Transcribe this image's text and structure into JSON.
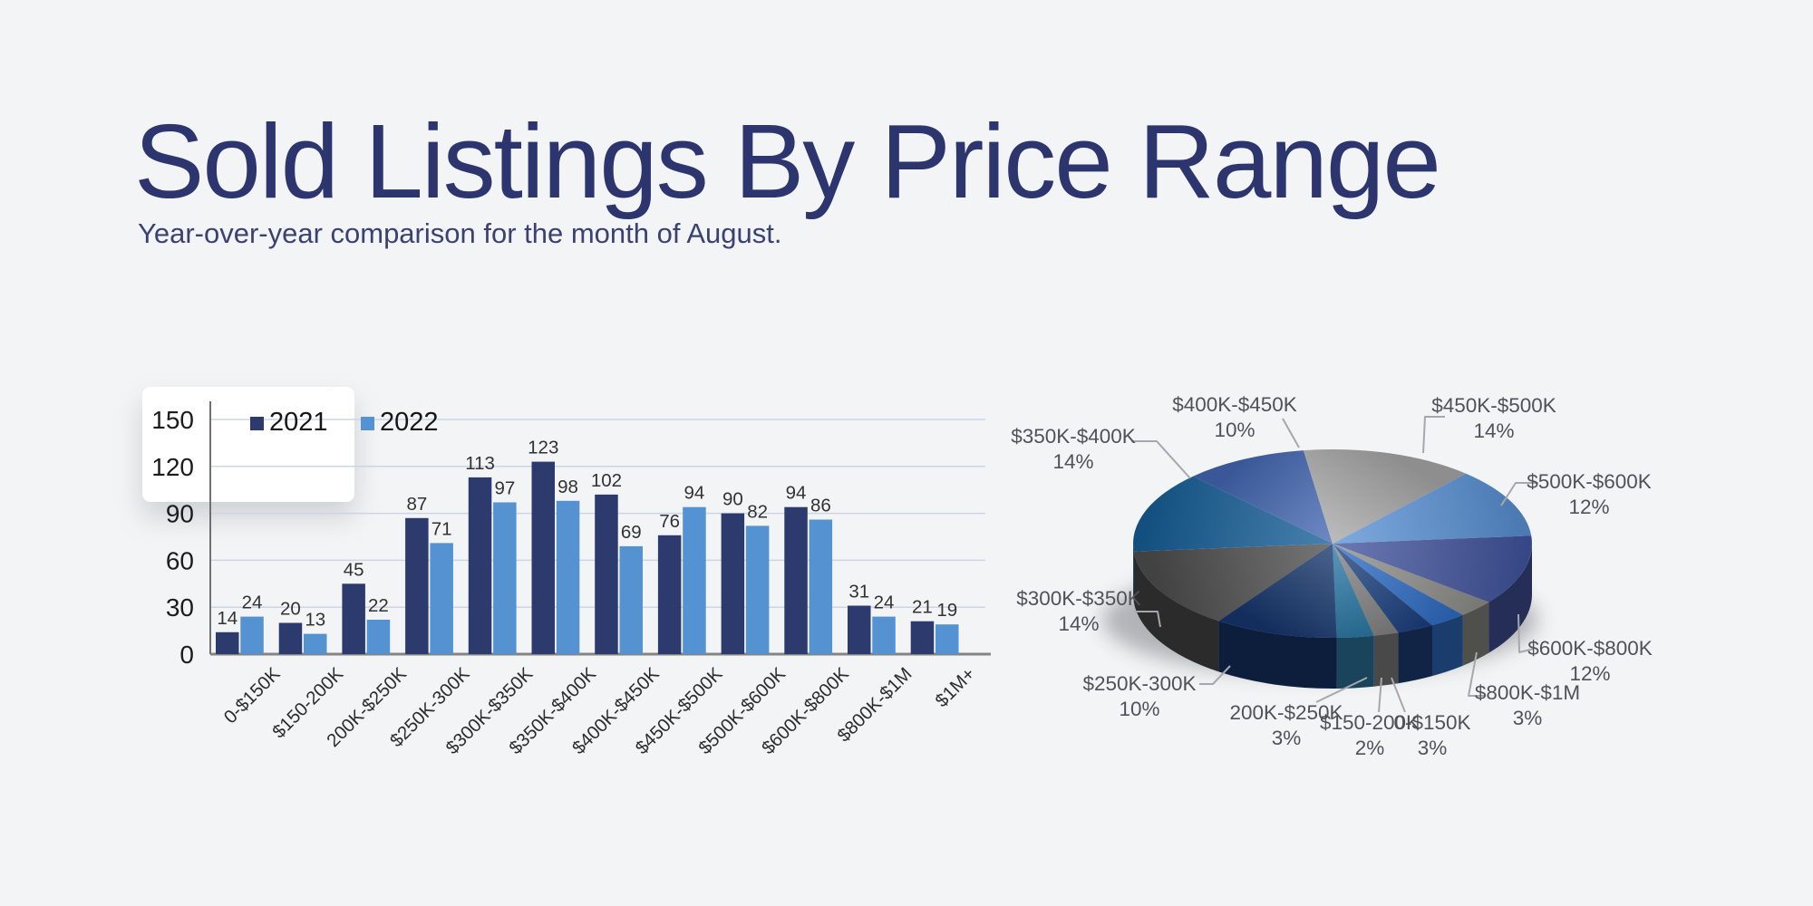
{
  "background": "#f3f4f5",
  "header": {
    "title": "Sold Listings By Price Range",
    "subtitle": "Year-over-year comparison for the month of August."
  },
  "chart_data": [
    {
      "type": "bar",
      "title": "",
      "categories": [
        "0-$150K",
        "$150-200K",
        "200K-$250K",
        "$250K-300K",
        "$300K-$350K",
        "$350K-$400K",
        "$400K-$450K",
        "$450K-$500K",
        "$500K-$600K",
        "$600K-$800K",
        "$800K-$1M",
        "$1M+"
      ],
      "series": [
        {
          "name": "2021",
          "color": "#2c3a6d",
          "values": [
            14,
            20,
            45,
            87,
            113,
            123,
            102,
            76,
            90,
            94,
            31,
            21
          ]
        },
        {
          "name": "2022",
          "color": "#5592d2",
          "values": [
            24,
            13,
            22,
            71,
            97,
            98,
            69,
            94,
            82,
            86,
            24,
            19
          ]
        }
      ],
      "ylim": [
        0,
        150
      ],
      "yticks": [
        0,
        30,
        60,
        90,
        120,
        150
      ],
      "grid": true,
      "grid_color": "#ccd5e6",
      "axis_color": "#6f6f6f",
      "tick_label_color": "#1c1c1c",
      "value_label_color": "#323232",
      "value_labels": true,
      "legend_position": "top-left"
    },
    {
      "type": "pie",
      "effect": "3d",
      "start_angle_deg": 150,
      "label_color": "#515156",
      "leader_color": "#a7a7ab",
      "slices": [
        {
          "label": "0-$150K",
          "pct": 3,
          "pct_label": "3%",
          "color": "#1e4280",
          "show_label": true
        },
        {
          "label": "$150-200K",
          "pct": 2,
          "pct_label": "2%",
          "color": "#858585",
          "show_label": true
        },
        {
          "label": "200K-$250K",
          "pct": 3,
          "pct_label": "3%",
          "color": "#2d7ba8",
          "show_label": true
        },
        {
          "label": "$250K-300K",
          "pct": 10,
          "pct_label": "10%",
          "color": "#17376e",
          "show_label": true
        },
        {
          "label": "$300K-$350K",
          "pct": 14,
          "pct_label": "14%",
          "color": "#4f4f4f",
          "show_label": true
        },
        {
          "label": "$350K-$400K",
          "pct": 14,
          "pct_label": "14%",
          "color": "#155e97",
          "show_label": true
        },
        {
          "label": "$400K-$450K",
          "pct": 10,
          "pct_label": "10%",
          "color": "#4569b4",
          "show_label": true
        },
        {
          "label": "$450K-$500K",
          "pct": 14,
          "pct_label": "14%",
          "color": "#a9a9a9",
          "show_label": true
        },
        {
          "label": "$500K-$600K",
          "pct": 12,
          "pct_label": "12%",
          "color": "#5b93d6",
          "show_label": true
        },
        {
          "label": "$600K-$800K",
          "pct": 12,
          "pct_label": "12%",
          "color": "#42549e",
          "show_label": true
        },
        {
          "label": "$800K-$1M",
          "pct": 3,
          "pct_label": "3%",
          "color": "#8f8f8a",
          "show_label": true
        },
        {
          "label": "$1M+",
          "pct": 3,
          "pct_label": "",
          "color": "#2f6ec6",
          "show_label": false
        }
      ]
    }
  ]
}
